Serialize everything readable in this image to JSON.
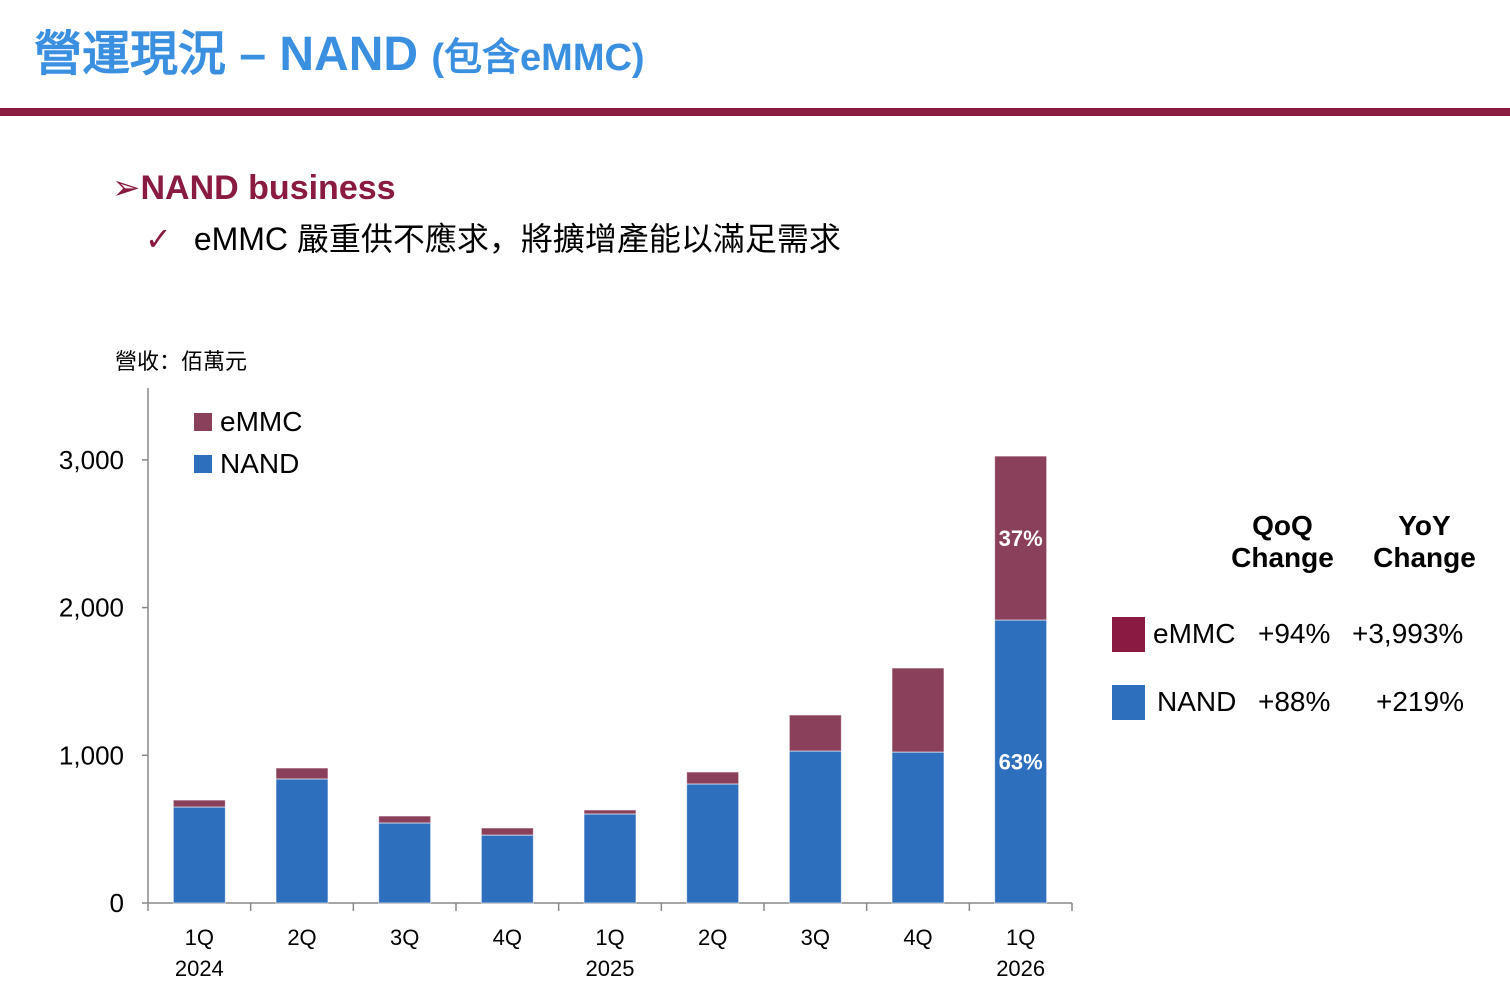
{
  "header": {
    "title": "營運現況 – NAND",
    "title_paren": "(包含eMMC)"
  },
  "bullets": {
    "main": "NAND business",
    "sub_check": "✓",
    "sub": "eMMC 嚴重供不應求，將擴增產能以滿足需求"
  },
  "chart_data": {
    "type": "bar",
    "stacked": true,
    "unit_label": "營收：佰萬元",
    "categories": [
      "1Q\n2024",
      "2Q",
      "3Q",
      "4Q",
      "1Q\n2025",
      "2Q",
      "3Q",
      "4Q",
      "1Q\n2026"
    ],
    "category_labels": [
      [
        "1Q",
        "2024"
      ],
      [
        "2Q",
        ""
      ],
      [
        "3Q",
        ""
      ],
      [
        "4Q",
        ""
      ],
      [
        "1Q",
        "2025"
      ],
      [
        "2Q",
        ""
      ],
      [
        "3Q",
        ""
      ],
      [
        "4Q",
        ""
      ],
      [
        "1Q",
        "2026"
      ]
    ],
    "series": [
      {
        "name": "NAND",
        "color": "#2e6fbd",
        "values": [
          650,
          840,
          542,
          460,
          603,
          806,
          1029,
          1022,
          1916
        ]
      },
      {
        "name": "eMMC",
        "color": "#8a3f5a",
        "values": [
          47,
          74,
          47,
          48,
          27,
          81,
          244,
          569,
          1110
        ]
      }
    ],
    "data_labels": [
      {
        "category_index": 8,
        "series": "eMMC",
        "text": "37%"
      },
      {
        "category_index": 8,
        "series": "NAND",
        "text": "63%"
      }
    ],
    "ylim": [
      0,
      3500
    ],
    "yticks": [
      0,
      1000,
      2000,
      3000
    ],
    "ytick_labels": [
      "0",
      "1,000",
      "2,000",
      "3,000"
    ],
    "legend": {
      "placement": "top-left",
      "entries": [
        "eMMC",
        "NAND"
      ]
    },
    "grid": false
  },
  "change_table": {
    "headers": [
      [
        "QoQ",
        "Change"
      ],
      [
        "YoY",
        "Change"
      ]
    ],
    "rows": [
      {
        "label": "eMMC",
        "color": "#8b1a42",
        "qoq": "+94%",
        "yoy": "+3,993%"
      },
      {
        "label": "NAND",
        "color": "#2e6fbd",
        "qoq": "+88%",
        "yoy": "+219%"
      }
    ]
  }
}
